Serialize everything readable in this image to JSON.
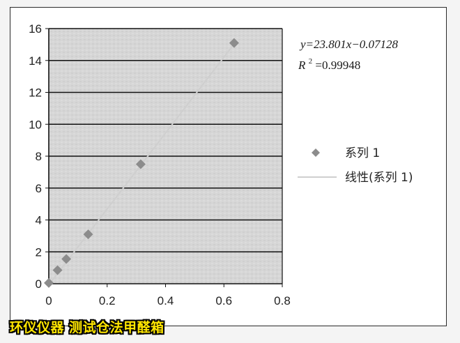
{
  "chart_data": {
    "type": "scatter",
    "title": "",
    "xlabel": "",
    "ylabel": "",
    "xlim": [
      0,
      0.8
    ],
    "ylim": [
      0,
      16
    ],
    "x_ticks": [
      "0",
      "0.2",
      "0.4",
      "0.6",
      "0.8"
    ],
    "y_ticks": [
      "0",
      "2",
      "4",
      "6",
      "8",
      "10",
      "12",
      "14",
      "16"
    ],
    "grid": "horizontal",
    "legend_position": "right",
    "series": [
      {
        "name": "系列 1",
        "marker": "diamond",
        "color": "#8c8c8c",
        "x": [
          0,
          0.03,
          0.06,
          0.135,
          0.315,
          0.635
        ],
        "y": [
          0.05,
          0.85,
          1.55,
          3.1,
          7.5,
          15.1
        ]
      }
    ],
    "trendline": {
      "name": "线性(系列 1)",
      "slope": 23.801,
      "intercept": -0.07128,
      "color": "#cfcfcf"
    },
    "annotations": {
      "equation": "y=23.801x−0.07128",
      "r2_prefix": "R",
      "r2_sup": "2",
      "r2_value": "=0.99948"
    }
  },
  "caption": "环仪仪器 测试仓法甲醛箱"
}
